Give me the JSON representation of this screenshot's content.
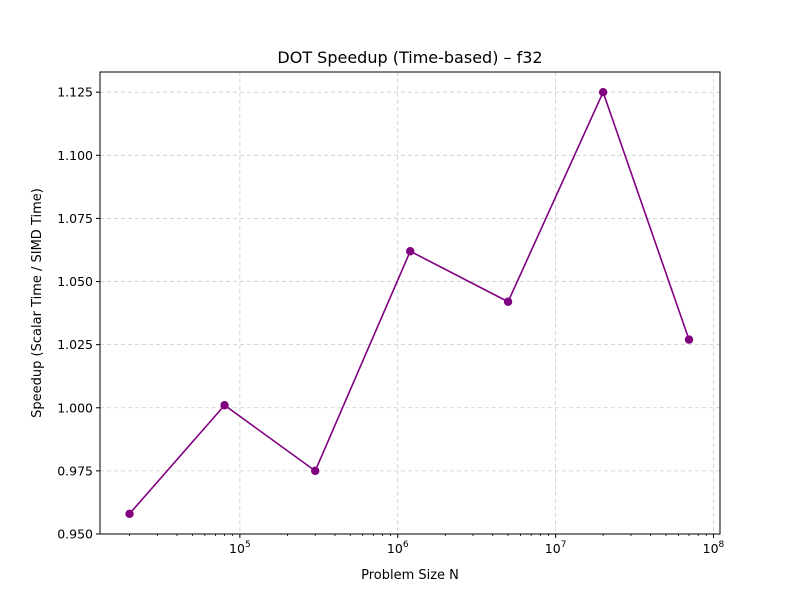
{
  "chart_data": {
    "type": "line",
    "title": "DOT Speedup (Time-based) – f32",
    "xlabel": "Problem Size N",
    "ylabel": "Speedup (Scalar Time / SIMD Time)",
    "xscale": "log",
    "xlim": [
      13000,
      110000000
    ],
    "ylim": [
      0.95,
      1.133
    ],
    "x_ticks": [
      {
        "value": 100000,
        "base": "10",
        "exp": "5"
      },
      {
        "value": 1000000,
        "base": "10",
        "exp": "6"
      },
      {
        "value": 10000000,
        "base": "10",
        "exp": "7"
      },
      {
        "value": 100000000,
        "base": "10",
        "exp": "8"
      }
    ],
    "y_ticks": [
      {
        "value": 0.95,
        "label": "0.950"
      },
      {
        "value": 0.975,
        "label": "0.975"
      },
      {
        "value": 1.0,
        "label": "1.000"
      },
      {
        "value": 1.025,
        "label": "1.025"
      },
      {
        "value": 1.05,
        "label": "1.050"
      },
      {
        "value": 1.075,
        "label": "1.075"
      },
      {
        "value": 1.1,
        "label": "1.100"
      },
      {
        "value": 1.125,
        "label": "1.125"
      }
    ],
    "grid": true,
    "grid_style": "dashed",
    "series": [
      {
        "color": "#800080",
        "marker": "circle",
        "x": [
          20000,
          80000,
          300000,
          1200000,
          5000000,
          20000000,
          70000000
        ],
        "y": [
          0.958,
          1.001,
          0.975,
          1.062,
          1.042,
          1.125,
          1.027
        ]
      }
    ]
  }
}
